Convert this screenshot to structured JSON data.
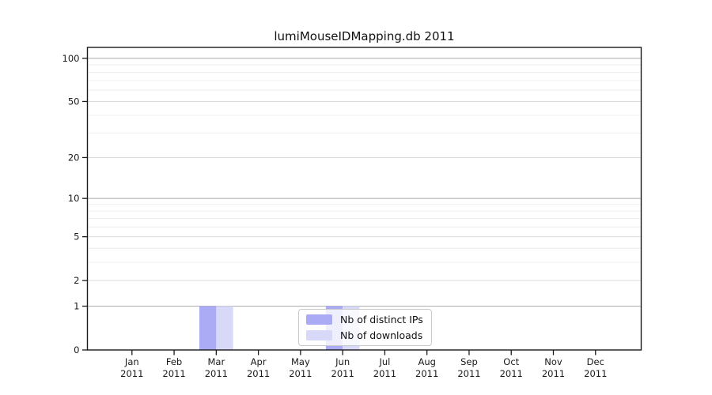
{
  "title": "lumiMouseIDMapping.db 2011",
  "chart_data": {
    "type": "bar",
    "title": "lumiMouseIDMapping.db 2011",
    "xlabel": "",
    "ylabel": "",
    "year": "2011",
    "categories": [
      {
        "month": "Jan",
        "year": "2011"
      },
      {
        "month": "Feb",
        "year": "2011"
      },
      {
        "month": "Mar",
        "year": "2011"
      },
      {
        "month": "Apr",
        "year": "2011"
      },
      {
        "month": "May",
        "year": "2011"
      },
      {
        "month": "Jun",
        "year": "2011"
      },
      {
        "month": "Jul",
        "year": "2011"
      },
      {
        "month": "Aug",
        "year": "2011"
      },
      {
        "month": "Sep",
        "year": "2011"
      },
      {
        "month": "Oct",
        "year": "2011"
      },
      {
        "month": "Nov",
        "year": "2011"
      },
      {
        "month": "Dec",
        "year": "2011"
      }
    ],
    "series": [
      {
        "name": "Nb of distinct IPs",
        "color": "#aaaaf5",
        "values": [
          0,
          0,
          1,
          0,
          0,
          1,
          0,
          0,
          0,
          0,
          0,
          0
        ]
      },
      {
        "name": "Nb of downloads",
        "color": "#d8d8f8",
        "values": [
          0,
          0,
          1,
          0,
          0,
          1,
          0,
          0,
          0,
          0,
          0,
          0
        ]
      }
    ],
    "y_scale": "log1p",
    "y_ticks": [
      0,
      1,
      2,
      5,
      10,
      20,
      50,
      100
    ],
    "y_major_gridlines": [
      1,
      10,
      100
    ],
    "y_mid_gridlines": [
      2,
      5,
      20,
      50
    ],
    "y_minor_gridlines": [
      3,
      4,
      6,
      7,
      8,
      9,
      30,
      40,
      60,
      70,
      80,
      90
    ],
    "ylim": [
      0,
      114
    ],
    "grid": true,
    "legend_position": "lower center",
    "colors": {
      "major_grid": "#b3b3b3",
      "mid_grid": "#dcdcdc",
      "minor_grid": "#ececec",
      "axis": "#1a1a1a",
      "text": "#1a1a1a"
    }
  }
}
